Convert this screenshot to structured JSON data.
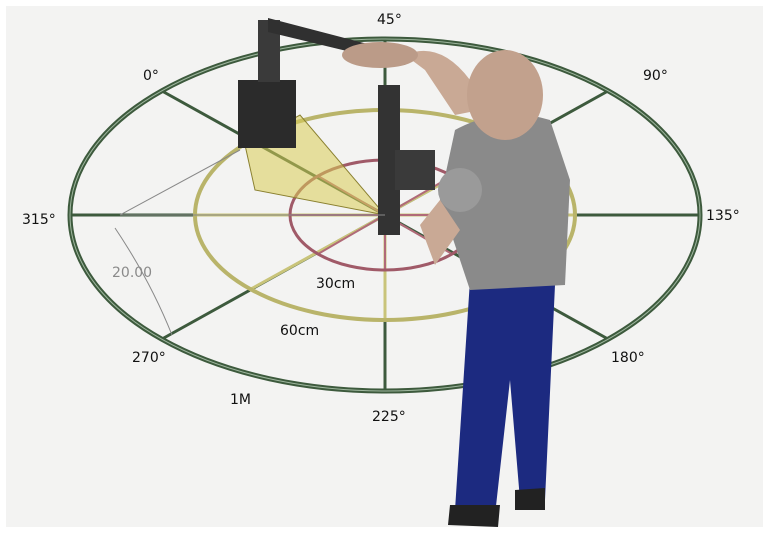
{
  "angles": {
    "a0": "0°",
    "a45": "45°",
    "a90": "90°",
    "a135": "135°",
    "a180": "180°",
    "a225": "225°",
    "a270": "270°",
    "a315": "315°"
  },
  "distances": {
    "inner": "30cm",
    "middle": "60cm",
    "outer": "1M"
  },
  "dimension": "20.00"
}
